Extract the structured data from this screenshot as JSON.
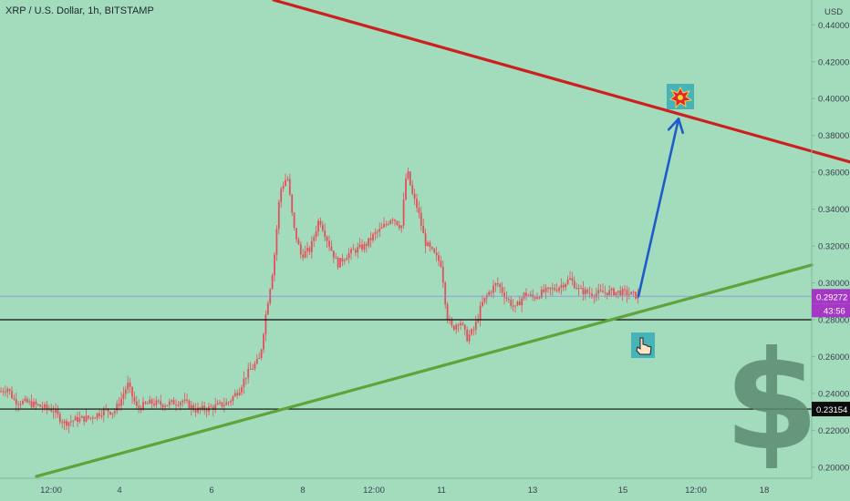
{
  "header": {
    "title": "XRP / U.S. Dollar, 1h, BITSTAMP"
  },
  "currency_label": "USD",
  "colors": {
    "background": "#a3dbbd",
    "candle": "#e0525b",
    "resistance_line": "#cc1f1f",
    "support_line": "#5fa33a",
    "arrow": "#1f5bc8",
    "price_badge": "#a438c4",
    "level_badge": "#0b0b0b",
    "dollar_sign": "#5c8a70"
  },
  "chart_data": {
    "type": "candlestick",
    "title": "XRP / U.S. Dollar, 1h, BITSTAMP",
    "y_unit": "USD",
    "ylim": [
      0.194,
      0.4535
    ],
    "y_ticks": [
      "0.20000",
      "0.22000",
      "0.24000",
      "0.26000",
      "0.28000",
      "0.30000",
      "0.32000",
      "0.34000",
      "0.36000",
      "0.38000",
      "0.40000",
      "0.42000",
      "0.44000"
    ],
    "x_tick_labels": [
      "12:00",
      "4",
      "6",
      "8",
      "12:00",
      "11",
      "13",
      "15",
      "12:00",
      "18"
    ],
    "current_price": "0.29272",
    "countdown": "43:56",
    "horizontal_levels": [
      {
        "value": 0.28,
        "label": ""
      },
      {
        "value": 0.23154,
        "label": "0.23154"
      }
    ],
    "price_path": [
      [
        0,
        0.241
      ],
      [
        8,
        0.243
      ],
      [
        16,
        0.236
      ],
      [
        30,
        0.235
      ],
      [
        44,
        0.233
      ],
      [
        58,
        0.231
      ],
      [
        70,
        0.224
      ],
      [
        85,
        0.226
      ],
      [
        100,
        0.227
      ],
      [
        115,
        0.231
      ],
      [
        125,
        0.23
      ],
      [
        132,
        0.236
      ],
      [
        140,
        0.245
      ],
      [
        150,
        0.232
      ],
      [
        165,
        0.235
      ],
      [
        180,
        0.234
      ],
      [
        200,
        0.236
      ],
      [
        215,
        0.231
      ],
      [
        230,
        0.232
      ],
      [
        250,
        0.235
      ],
      [
        262,
        0.242
      ],
      [
        270,
        0.25
      ],
      [
        285,
        0.259
      ],
      [
        292,
        0.285
      ],
      [
        300,
        0.31
      ],
      [
        307,
        0.35
      ],
      [
        315,
        0.358
      ],
      [
        322,
        0.33
      ],
      [
        330,
        0.315
      ],
      [
        340,
        0.318
      ],
      [
        350,
        0.335
      ],
      [
        360,
        0.322
      ],
      [
        370,
        0.31
      ],
      [
        380,
        0.315
      ],
      [
        390,
        0.318
      ],
      [
        400,
        0.32
      ],
      [
        410,
        0.326
      ],
      [
        420,
        0.33
      ],
      [
        430,
        0.336
      ],
      [
        440,
        0.33
      ],
      [
        446,
        0.362
      ],
      [
        452,
        0.348
      ],
      [
        458,
        0.34
      ],
      [
        466,
        0.322
      ],
      [
        475,
        0.316
      ],
      [
        484,
        0.31
      ],
      [
        490,
        0.282
      ],
      [
        496,
        0.275
      ],
      [
        504,
        0.28
      ],
      [
        512,
        0.27
      ],
      [
        520,
        0.275
      ],
      [
        528,
        0.288
      ],
      [
        535,
        0.294
      ],
      [
        545,
        0.3
      ],
      [
        555,
        0.292
      ],
      [
        565,
        0.286
      ],
      [
        575,
        0.294
      ],
      [
        585,
        0.292
      ],
      [
        595,
        0.295
      ],
      [
        610,
        0.297
      ],
      [
        625,
        0.302
      ],
      [
        635,
        0.296
      ],
      [
        650,
        0.294
      ],
      [
        665,
        0.295
      ],
      [
        680,
        0.295
      ],
      [
        690,
        0.294
      ],
      [
        700,
        0.2927
      ]
    ],
    "trendlines": [
      {
        "name": "resistance",
        "from": [
          300,
          0.4535
        ],
        "to": [
          932,
          0.3656
        ]
      },
      {
        "name": "support",
        "from": [
          40,
          0.195
        ],
        "to": [
          890,
          0.3097
        ]
      }
    ],
    "projection_arrow": {
      "from": [
        700,
        0.2927
      ],
      "to": [
        744,
        0.389
      ]
    }
  },
  "annotations": {
    "explosion_icon": "explosion-emoji",
    "pointer_icon": "pointing-hand-emoji",
    "dollar_sign": "$"
  }
}
